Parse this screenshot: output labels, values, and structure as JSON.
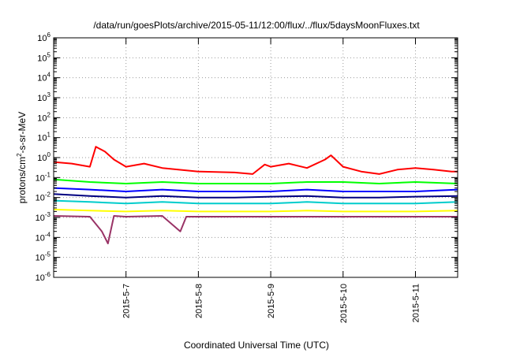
{
  "chart_data": {
    "type": "line",
    "title": "/data/run/goesPlots/archive/2015-05-11/12:00/flux/../flux/5daysMoonFluxes.txt",
    "xlabel": "Coordinated Universal Time (UTC)",
    "ylabel": {
      "prefix": "protons/cm",
      "sup": "2",
      "suffix": "-s-sr-MeV"
    },
    "y_scale": "log",
    "ylim": [
      1e-06,
      1000000.0
    ],
    "xlim": [
      "2015-05-06 00:00",
      "2015-05-11 14:00"
    ],
    "grid": true,
    "y_ticks": [
      {
        "base": "10",
        "exp": "-6",
        "value": 1e-06
      },
      {
        "base": "10",
        "exp": "-5",
        "value": 1e-05
      },
      {
        "base": "10",
        "exp": "-4",
        "value": 0.0001
      },
      {
        "base": "10",
        "exp": "-3",
        "value": 0.001
      },
      {
        "base": "10",
        "exp": "-2",
        "value": 0.01
      },
      {
        "base": "10",
        "exp": "-1",
        "value": 0.1
      },
      {
        "base": "10",
        "exp": "0",
        "value": 1
      },
      {
        "base": "10",
        "exp": "1",
        "value": 10
      },
      {
        "base": "10",
        "exp": "2",
        "value": 100
      },
      {
        "base": "10",
        "exp": "3",
        "value": 1000
      },
      {
        "base": "10",
        "exp": "4",
        "value": 10000
      },
      {
        "base": "10",
        "exp": "5",
        "value": 100000
      },
      {
        "base": "10",
        "exp": "6",
        "value": 1000000
      }
    ],
    "x_ticks": [
      {
        "label": "2015-5-7",
        "value": "2015-05-07 00:00"
      },
      {
        "label": "2015-5-8",
        "value": "2015-05-08 00:00"
      },
      {
        "label": "2015-5-9",
        "value": "2015-05-09 00:00"
      },
      {
        "label": "2015-5-10",
        "value": "2015-05-10 00:00"
      },
      {
        "label": "2015-5-11",
        "value": "2015-05-11 00:00"
      }
    ],
    "series": [
      {
        "color": "#ff0000",
        "x": [
          "2015-05-06 00:00",
          "2015-05-06 06:00",
          "2015-05-06 12:00",
          "2015-05-06 14:00",
          "2015-05-06 17:00",
          "2015-05-06 20:00",
          "2015-05-07 00:00",
          "2015-05-07 06:00",
          "2015-05-07 12:00",
          "2015-05-08 00:00",
          "2015-05-08 12:00",
          "2015-05-08 18:00",
          "2015-05-08 22:00",
          "2015-05-09 00:00",
          "2015-05-09 06:00",
          "2015-05-09 12:00",
          "2015-05-09 18:00",
          "2015-05-09 20:00",
          "2015-05-10 00:00",
          "2015-05-10 06:00",
          "2015-05-10 12:00",
          "2015-05-10 18:00",
          "2015-05-11 00:00",
          "2015-05-11 06:00",
          "2015-05-11 12:00",
          "2015-05-11 14:00"
        ],
        "y": [
          0.6,
          0.5,
          0.35,
          3.5,
          2.0,
          0.8,
          0.35,
          0.5,
          0.3,
          0.2,
          0.18,
          0.15,
          0.45,
          0.35,
          0.5,
          0.3,
          0.8,
          1.3,
          0.35,
          0.2,
          0.15,
          0.25,
          0.3,
          0.25,
          0.2,
          0.2
        ]
      },
      {
        "color": "#00ff00",
        "x": [
          "2015-05-06 00:00",
          "2015-05-06 12:00",
          "2015-05-07 00:00",
          "2015-05-07 12:00",
          "2015-05-08 00:00",
          "2015-05-08 12:00",
          "2015-05-09 00:00",
          "2015-05-09 12:00",
          "2015-05-10 00:00",
          "2015-05-10 12:00",
          "2015-05-11 00:00",
          "2015-05-11 14:00"
        ],
        "y": [
          0.08,
          0.06,
          0.05,
          0.06,
          0.05,
          0.05,
          0.05,
          0.06,
          0.06,
          0.05,
          0.06,
          0.05
        ]
      },
      {
        "color": "#0000ff",
        "x": [
          "2015-05-06 00:00",
          "2015-05-06 12:00",
          "2015-05-07 00:00",
          "2015-05-07 12:00",
          "2015-05-08 00:00",
          "2015-05-08 12:00",
          "2015-05-09 00:00",
          "2015-05-09 12:00",
          "2015-05-10 00:00",
          "2015-05-10 12:00",
          "2015-05-11 00:00",
          "2015-05-11 14:00"
        ],
        "y": [
          0.03,
          0.025,
          0.02,
          0.025,
          0.02,
          0.02,
          0.02,
          0.025,
          0.02,
          0.02,
          0.02,
          0.025
        ]
      },
      {
        "color": "#000080",
        "x": [
          "2015-05-06 00:00",
          "2015-05-06 12:00",
          "2015-05-07 00:00",
          "2015-05-07 12:00",
          "2015-05-08 00:00",
          "2015-05-08 12:00",
          "2015-05-09 00:00",
          "2015-05-09 12:00",
          "2015-05-10 00:00",
          "2015-05-10 12:00",
          "2015-05-11 00:00",
          "2015-05-11 14:00"
        ],
        "y": [
          0.015,
          0.012,
          0.01,
          0.012,
          0.01,
          0.01,
          0.011,
          0.012,
          0.01,
          0.01,
          0.011,
          0.012
        ]
      },
      {
        "color": "#00cccc",
        "x": [
          "2015-05-06 00:00",
          "2015-05-06 12:00",
          "2015-05-07 00:00",
          "2015-05-07 12:00",
          "2015-05-08 00:00",
          "2015-05-08 12:00",
          "2015-05-09 00:00",
          "2015-05-09 12:00",
          "2015-05-10 00:00",
          "2015-05-10 12:00",
          "2015-05-11 00:00",
          "2015-05-11 14:00"
        ],
        "y": [
          0.007,
          0.006,
          0.005,
          0.006,
          0.005,
          0.005,
          0.005,
          0.006,
          0.005,
          0.005,
          0.005,
          0.006
        ]
      },
      {
        "color": "#ffff00",
        "x": [
          "2015-05-06 00:00",
          "2015-05-06 12:00",
          "2015-05-07 00:00",
          "2015-05-07 12:00",
          "2015-05-08 00:00",
          "2015-05-08 12:00",
          "2015-05-09 00:00",
          "2015-05-09 12:00",
          "2015-05-10 00:00",
          "2015-05-10 12:00",
          "2015-05-11 00:00",
          "2015-05-11 14:00"
        ],
        "y": [
          0.0025,
          0.0022,
          0.002,
          0.0022,
          0.002,
          0.002,
          0.002,
          0.0022,
          0.002,
          0.002,
          0.002,
          0.0022
        ]
      },
      {
        "color": "#993366",
        "x": [
          "2015-05-06 00:00",
          "2015-05-06 12:00",
          "2015-05-06 16:00",
          "2015-05-06 18:00",
          "2015-05-06 20:00",
          "2015-05-07 00:00",
          "2015-05-07 12:00",
          "2015-05-07 18:00",
          "2015-05-07 20:00",
          "2015-05-08 00:00",
          "2015-05-08 12:00",
          "2015-05-09 00:00",
          "2015-05-09 12:00",
          "2015-05-10 00:00",
          "2015-05-10 12:00",
          "2015-05-11 00:00",
          "2015-05-11 14:00"
        ],
        "y": [
          0.0012,
          0.0011,
          0.0002,
          5e-05,
          0.0012,
          0.0011,
          0.0012,
          0.0002,
          0.0011,
          0.0011,
          0.0011,
          0.0011,
          0.0011,
          0.0011,
          0.0011,
          0.0011,
          0.0011
        ]
      }
    ]
  }
}
